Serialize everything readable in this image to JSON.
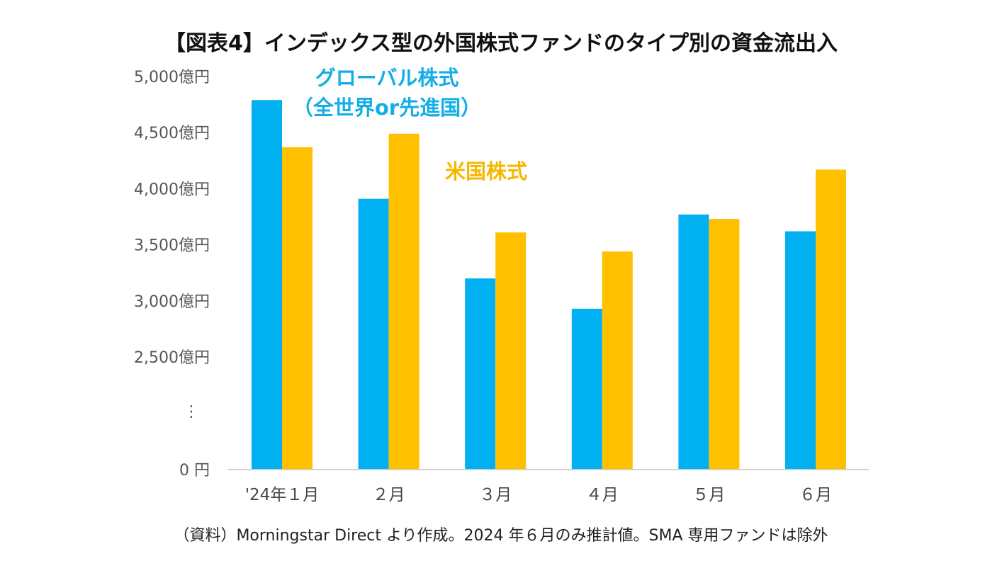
{
  "chart_data": {
    "type": "bar",
    "title": "【図表4】インデックス型の外国株式ファンドのタイプ別の資金流出入",
    "categories": [
      "'24年１月",
      "２月",
      "３月",
      "４月",
      "５月",
      "６月"
    ],
    "series": [
      {
        "name": "グローバル株式（全世界or先進国）",
        "name_lines": [
          "グローバル株式",
          "（全世界or先進国）"
        ],
        "color": "#00b0f0",
        "values": [
          4790,
          3910,
          3200,
          2930,
          3770,
          3620
        ]
      },
      {
        "name": "米国株式",
        "color": "#ffc000",
        "values": [
          4370,
          4490,
          3610,
          3440,
          3730,
          4170
        ]
      }
    ],
    "yticks": [
      {
        "value": 2500,
        "label": "2,500億円"
      },
      {
        "value": 3000,
        "label": "3,000億円"
      },
      {
        "value": 3500,
        "label": "3,500億円"
      },
      {
        "value": 4000,
        "label": "4,000億円"
      },
      {
        "value": 4500,
        "label": "4,500億円"
      },
      {
        "value": 5000,
        "label": "5,000億円"
      }
    ],
    "zero_label": "0 円",
    "axis_break_label": "⋮",
    "ylim": [
      2500,
      5000
    ],
    "axis_break": true,
    "grid": false,
    "source": "（資料）Morningstar Direct より作成。2024 年６月のみ推計値。SMA 専用ファンドは除外"
  }
}
